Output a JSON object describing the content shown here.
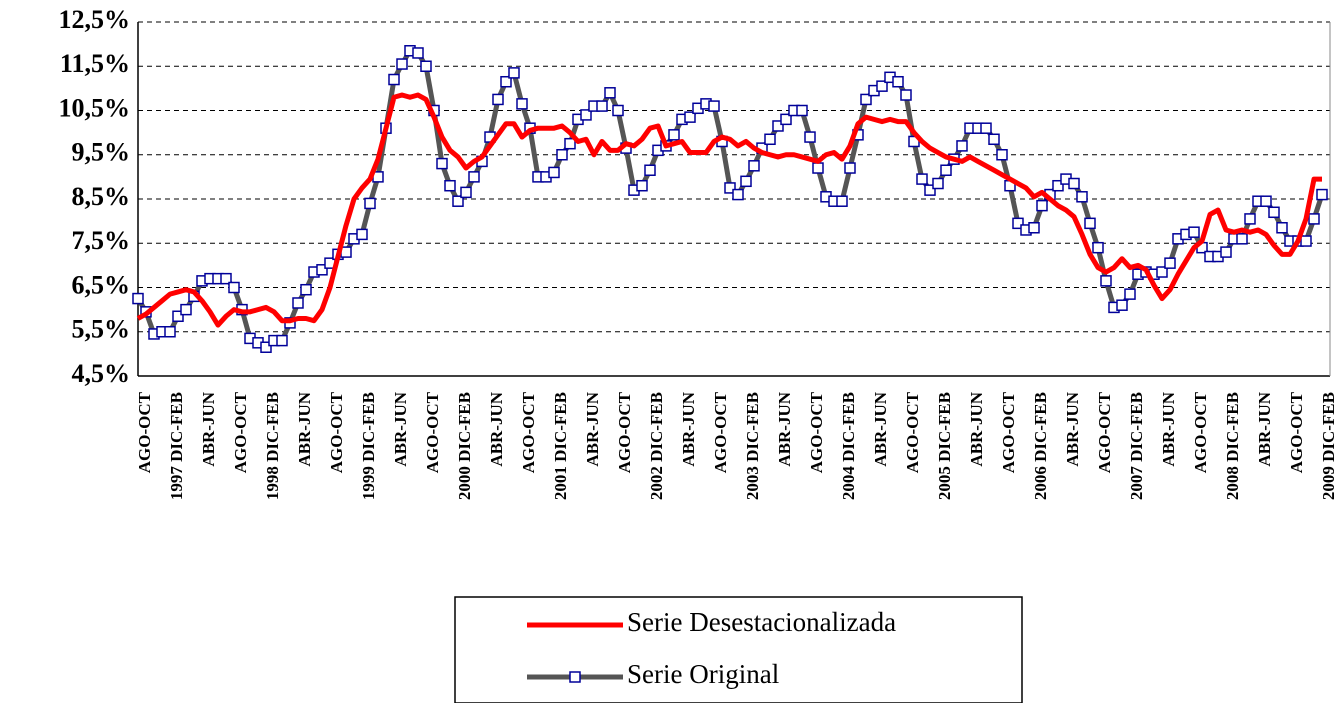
{
  "chart_data": {
    "type": "line",
    "categories": [
      "AGO-OCT",
      null,
      null,
      null,
      "1997 DIC-FEB",
      null,
      null,
      null,
      "ABR-JUN",
      null,
      null,
      null,
      "AGO-OCT",
      null,
      null,
      null,
      "1998 DIC-FEB",
      null,
      null,
      null,
      "ABR-JUN",
      null,
      null,
      null,
      "AGO-OCT",
      null,
      null,
      null,
      "1999 DIC-FEB",
      null,
      null,
      null,
      "ABR-JUN",
      null,
      null,
      null,
      "AGO-OCT",
      null,
      null,
      null,
      "2000 DIC-FEB",
      null,
      null,
      null,
      "ABR-JUN",
      null,
      null,
      null,
      "AGO-OCT",
      null,
      null,
      null,
      "2001 DIC-FEB",
      null,
      null,
      null,
      "ABR-JUN",
      null,
      null,
      null,
      "AGO-OCT",
      null,
      null,
      null,
      "2002 DIC-FEB",
      null,
      null,
      null,
      "ABR-JUN",
      null,
      null,
      null,
      "AGO-OCT",
      null,
      null,
      null,
      "2003 DIC-FEB",
      null,
      null,
      null,
      "ABR-JUN",
      null,
      null,
      null,
      "AGO-OCT",
      null,
      null,
      null,
      "2004 DIC-FEB",
      null,
      null,
      null,
      "ABR-JUN",
      null,
      null,
      null,
      "AGO-OCT",
      null,
      null,
      null,
      "2005 DIC-FEB",
      null,
      null,
      null,
      "ABR-JUN",
      null,
      null,
      null,
      "AGO-OCT",
      null,
      null,
      null,
      "2006 DIC-FEB",
      null,
      null,
      null,
      "ABR-JUN",
      null,
      null,
      null,
      "AGO-OCT",
      null,
      null,
      null,
      "2007 DIC-FEB",
      null,
      null,
      null,
      "ABR-JUN",
      null,
      null,
      null,
      "AGO-OCT",
      null,
      null,
      null,
      "2008 DIC-FEB",
      null,
      null,
      null,
      "ABR-JUN",
      null,
      null,
      null,
      "AGO-OCT",
      null,
      null,
      null,
      "2009 DIC-FEB"
    ],
    "series": [
      {
        "name": "Serie Desestacionalizada",
        "color": "#ff0000",
        "values": [
          5.8,
          5.9,
          6.05,
          6.2,
          6.35,
          6.4,
          6.45,
          6.4,
          6.2,
          5.95,
          5.65,
          5.85,
          6.0,
          5.95,
          5.95,
          6.0,
          6.05,
          5.95,
          5.75,
          5.75,
          5.8,
          5.8,
          5.75,
          6.0,
          6.5,
          7.2,
          7.9,
          8.5,
          8.75,
          8.95,
          9.4,
          10.1,
          10.8,
          10.85,
          10.8,
          10.85,
          10.75,
          10.35,
          9.9,
          9.6,
          9.45,
          9.2,
          9.35,
          9.45,
          9.7,
          9.95,
          10.2,
          10.2,
          9.9,
          10.05,
          10.1,
          10.1,
          10.1,
          10.15,
          10.0,
          9.8,
          9.85,
          9.5,
          9.8,
          9.6,
          9.6,
          9.75,
          9.7,
          9.85,
          10.1,
          10.15,
          9.7,
          9.75,
          9.8,
          9.55,
          9.55,
          9.55,
          9.8,
          9.9,
          9.85,
          9.7,
          9.8,
          9.65,
          9.55,
          9.5,
          9.45,
          9.5,
          9.5,
          9.45,
          9.4,
          9.35,
          9.5,
          9.55,
          9.4,
          9.7,
          10.2,
          10.35,
          10.3,
          10.25,
          10.3,
          10.25,
          10.25,
          10.0,
          9.8,
          9.65,
          9.55,
          9.45,
          9.4,
          9.35,
          9.45,
          9.35,
          9.25,
          9.15,
          9.05,
          8.95,
          8.85,
          8.75,
          8.55,
          8.65,
          8.5,
          8.35,
          8.25,
          8.1,
          7.7,
          7.25,
          6.95,
          6.85,
          6.95,
          7.15,
          6.95,
          7.0,
          6.9,
          6.55,
          6.25,
          6.45,
          6.8,
          7.1,
          7.4,
          7.55,
          8.15,
          8.25,
          7.8,
          7.75,
          7.8,
          7.75,
          7.8,
          7.7,
          7.45,
          7.25,
          7.25,
          7.55,
          8.05,
          8.95,
          8.95
        ]
      },
      {
        "name": "Serie Original",
        "color": "#555555",
        "marker_color": "#000099",
        "values": [
          6.25,
          5.95,
          5.45,
          5.5,
          5.5,
          5.85,
          6.0,
          6.3,
          6.65,
          6.7,
          6.7,
          6.7,
          6.5,
          6.0,
          5.35,
          5.25,
          5.15,
          5.3,
          5.3,
          5.7,
          6.15,
          6.45,
          6.85,
          6.9,
          7.05,
          7.25,
          7.3,
          7.6,
          7.7,
          8.4,
          9.0,
          10.1,
          11.2,
          11.55,
          11.85,
          11.8,
          11.5,
          10.5,
          9.3,
          8.8,
          8.45,
          8.65,
          9.0,
          9.35,
          9.9,
          10.75,
          11.15,
          11.35,
          10.65,
          10.1,
          9.0,
          9.0,
          9.1,
          9.5,
          9.75,
          10.3,
          10.4,
          10.6,
          10.6,
          10.9,
          10.5,
          9.65,
          8.7,
          8.8,
          9.15,
          9.6,
          9.7,
          9.95,
          10.3,
          10.35,
          10.55,
          10.65,
          10.6,
          9.8,
          8.75,
          8.6,
          8.9,
          9.25,
          9.65,
          9.85,
          10.15,
          10.3,
          10.5,
          10.5,
          9.9,
          9.2,
          8.55,
          8.45,
          8.45,
          9.2,
          9.95,
          10.75,
          10.95,
          11.05,
          11.25,
          11.15,
          10.85,
          9.8,
          8.95,
          8.7,
          8.85,
          9.15,
          9.4,
          9.7,
          10.1,
          10.1,
          10.1,
          9.85,
          9.5,
          8.8,
          7.95,
          7.8,
          7.85,
          8.35,
          8.6,
          8.8,
          8.95,
          8.85,
          8.55,
          7.95,
          7.4,
          6.65,
          6.05,
          6.1,
          6.35,
          6.8,
          6.85,
          6.8,
          6.85,
          7.05,
          7.6,
          7.7,
          7.75,
          7.4,
          7.2,
          7.2,
          7.3,
          7.6,
          7.6,
          8.05,
          8.45,
          8.45,
          8.2,
          7.85,
          7.55,
          7.55,
          7.55,
          8.05,
          8.6
        ]
      }
    ],
    "ylim": [
      4.5,
      12.5
    ],
    "yticks": [
      {
        "value": 4.5,
        "label": "4,5%"
      },
      {
        "value": 5.5,
        "label": "5,5%"
      },
      {
        "value": 6.5,
        "label": "6,5%"
      },
      {
        "value": 7.5,
        "label": "7,5%"
      },
      {
        "value": 8.5,
        "label": "8,5%"
      },
      {
        "value": 9.5,
        "label": "9,5%"
      },
      {
        "value": 10.5,
        "label": "10,5%"
      },
      {
        "value": 11.5,
        "label": "11,5%"
      },
      {
        "value": 12.5,
        "label": "12,5%"
      }
    ],
    "grid": true,
    "legend": "bottom"
  }
}
